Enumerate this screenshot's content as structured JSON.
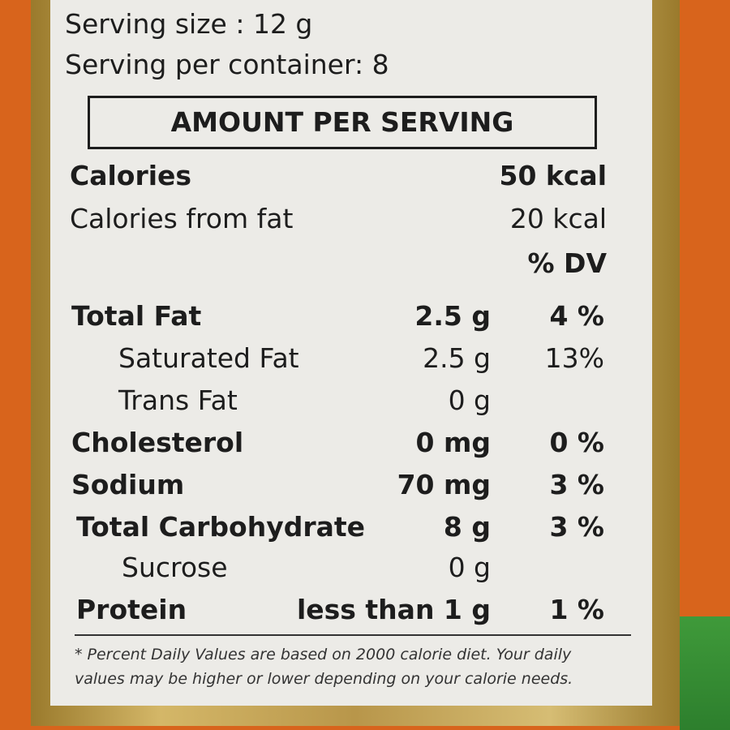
{
  "serving_size": "Serving size : 12 g",
  "servings_per_container": "Serving per container: 8",
  "header": "AMOUNT PER SERVING",
  "calories": {
    "label": "Calories",
    "amount": "50 kcal"
  },
  "calories_from_fat": {
    "label": "Calories from fat",
    "amount": "20 kcal"
  },
  "dv_header": "% DV",
  "rows": [
    {
      "name": "Total Fat",
      "amount": "2.5 g",
      "dv": "4 %"
    },
    {
      "name": "Saturated Fat",
      "amount": "2.5 g",
      "dv": "13%"
    },
    {
      "name": "Trans Fat",
      "amount": "0 g"
    },
    {
      "name": "Cholesterol",
      "amount": "0 mg",
      "dv": "0 %"
    },
    {
      "name": "Sodium",
      "amount": "70 mg",
      "dv": "3 %"
    },
    {
      "name": "Total Carbohydrate",
      "amount": "8 g",
      "dv": "3 %"
    },
    {
      "name": "Sucrose",
      "amount": "0 g"
    },
    {
      "name": "Protein",
      "amount": "less than 1 g",
      "dv": "1 %"
    }
  ],
  "footnote": [
    "* Percent Daily Values are based on 2000 calorie diet. Your daily",
    "values may be higher or lower depending on your calorie needs."
  ]
}
